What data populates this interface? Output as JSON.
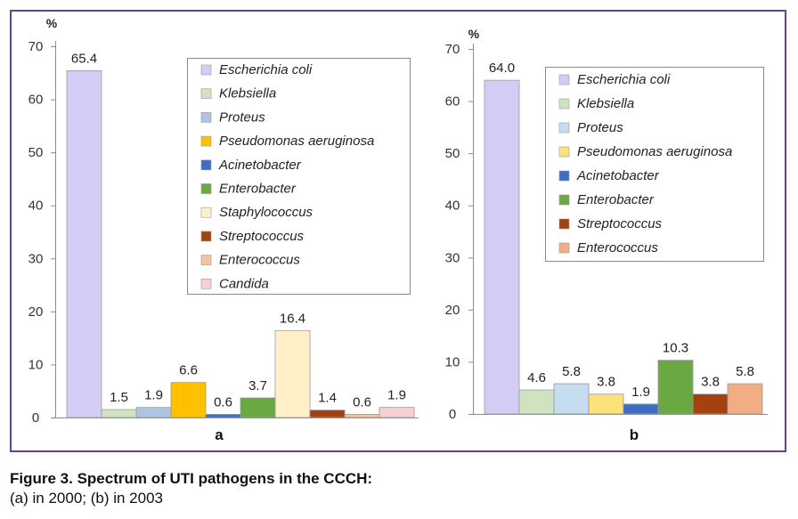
{
  "figure": {
    "caption_title": "Figure 3. Spectrum of UTI pathogens in the CCCH:",
    "caption_sub": "(a) in 2000; (b) in 2003",
    "colors": {
      "frame": "#6a3f97"
    }
  },
  "chart_data": [
    {
      "type": "bar",
      "title": "a",
      "ylabel": "%",
      "ylim": [
        0,
        70
      ],
      "yticks": [
        0,
        10,
        20,
        30,
        40,
        50,
        60,
        70
      ],
      "grid": false,
      "legend": "top-right",
      "categories": [
        "Escherichia coli",
        "Klebsiella",
        "Proteus",
        "Pseudomonas aeruginosa",
        "Acinetobacter",
        "Enterobacter",
        "Staphylococcus",
        "Streptococcus",
        "Enterococcus",
        "Candida"
      ],
      "values": [
        65.4,
        1.5,
        1.9,
        6.6,
        0.6,
        3.7,
        16.4,
        1.4,
        0.6,
        1.9
      ],
      "labels": [
        "65.4",
        "1.5",
        "1.9",
        "6.6",
        "0.6",
        "3.7",
        "16.4",
        "1.4",
        "0.6",
        "1.9"
      ],
      "colors": [
        "#d4ccf4",
        "#cfe3c1",
        "#afc3e3",
        "#ffc000",
        "#3e6ec4",
        "#6aa842",
        "#fff0c8",
        "#a3420e",
        "#f2c4a0",
        "#f8d0d4"
      ]
    },
    {
      "type": "bar",
      "title": "b",
      "ylabel": "%",
      "ylim": [
        0,
        70
      ],
      "yticks": [
        0,
        10,
        20,
        30,
        40,
        50,
        60,
        70
      ],
      "grid": false,
      "legend": "top-right",
      "categories": [
        "Escherichia coli",
        "Klebsiella",
        "Proteus",
        "Pseudomonas aeruginosa",
        "Acinetobacter",
        "Enterobacter",
        "Streptococcus",
        "Enterococcus"
      ],
      "values": [
        64.0,
        4.6,
        5.8,
        3.8,
        1.9,
        10.3,
        3.8,
        5.8
      ],
      "labels": [
        "64.0",
        "4.6",
        "5.8",
        "3.8",
        "1.9",
        "10.3",
        "3.8",
        "5.8"
      ],
      "colors": [
        "#d4ccf4",
        "#cfe3c1",
        "#c6dcf0",
        "#fde17a",
        "#3e6ec4",
        "#6aa842",
        "#a3420e",
        "#f2ad82"
      ]
    }
  ]
}
